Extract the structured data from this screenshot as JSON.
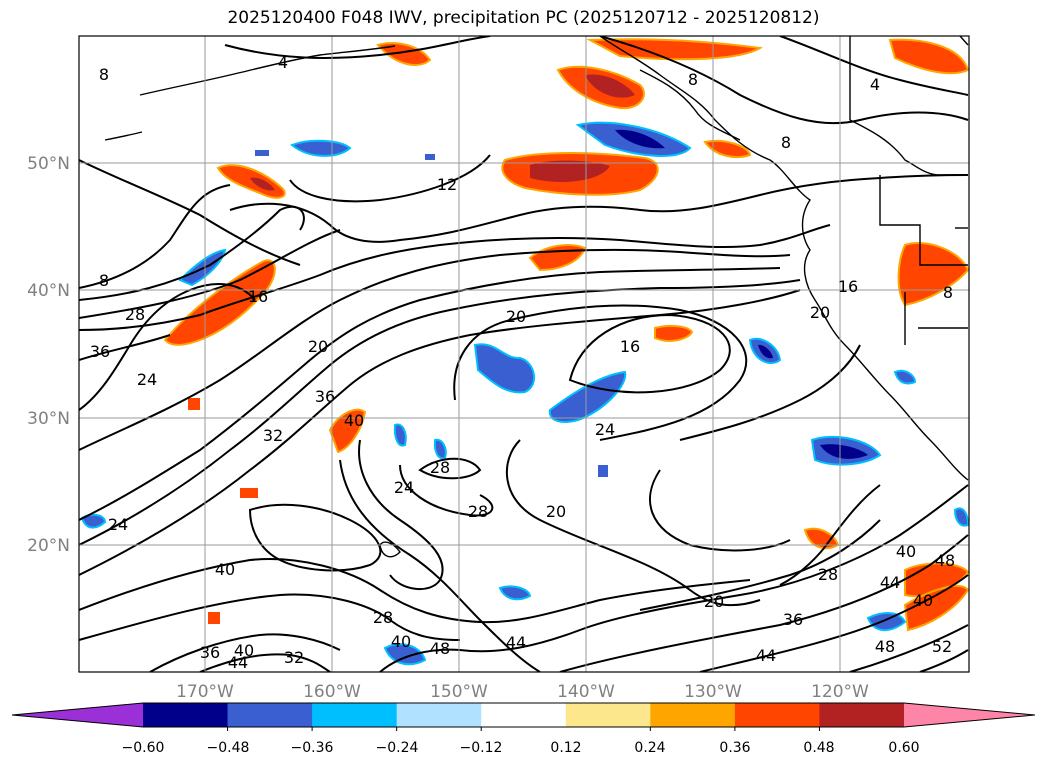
{
  "title": "2025120400 F048 IWV, precipitation PC (2025120712 - 2025120812)",
  "latitudes": [
    "20°N",
    "30°N",
    "40°N",
    "50°N"
  ],
  "longitudes": [
    "170°W",
    "160°W",
    "150°W",
    "140°W",
    "130°W",
    "120°W"
  ],
  "colorbar": {
    "ticks": [
      "−0.60",
      "−0.48",
      "−0.36",
      "−0.24",
      "−0.12",
      "0.12",
      "0.24",
      "0.36",
      "0.48",
      "0.60"
    ],
    "colors": [
      "#9b30d8",
      "#00008b",
      "#3a5fd0",
      "#00bfff",
      "#b0e2ff",
      "#ffffff",
      "#fce78c",
      "#ffa500",
      "#ff4500",
      "#b22222",
      "#ff85a8"
    ]
  },
  "contour_labels": [
    {
      "text": "4"
    },
    {
      "text": "8"
    },
    {
      "text": "8"
    },
    {
      "text": "4"
    },
    {
      "text": "8"
    },
    {
      "text": "12"
    },
    {
      "text": "8"
    },
    {
      "text": "16"
    },
    {
      "text": "28"
    },
    {
      "text": "36"
    },
    {
      "text": "24"
    },
    {
      "text": "20"
    },
    {
      "text": "36"
    },
    {
      "text": "32"
    },
    {
      "text": "40"
    },
    {
      "text": "20"
    },
    {
      "text": "16"
    },
    {
      "text": "24"
    },
    {
      "text": "28"
    },
    {
      "text": "24"
    },
    {
      "text": "28"
    },
    {
      "text": "20"
    },
    {
      "text": "24"
    },
    {
      "text": "40"
    },
    {
      "text": "28"
    },
    {
      "text": "20"
    },
    {
      "text": "36"
    },
    {
      "text": "40"
    },
    {
      "text": "48"
    },
    {
      "text": "44"
    },
    {
      "text": "36"
    },
    {
      "text": "44"
    },
    {
      "text": "40"
    },
    {
      "text": "32"
    },
    {
      "text": "44"
    },
    {
      "text": "28"
    },
    {
      "text": "40"
    },
    {
      "text": "44"
    },
    {
      "text": "40"
    },
    {
      "text": "48"
    },
    {
      "text": "48"
    },
    {
      "text": "52"
    },
    {
      "text": "16"
    },
    {
      "text": "20"
    },
    {
      "text": "8"
    }
  ]
}
